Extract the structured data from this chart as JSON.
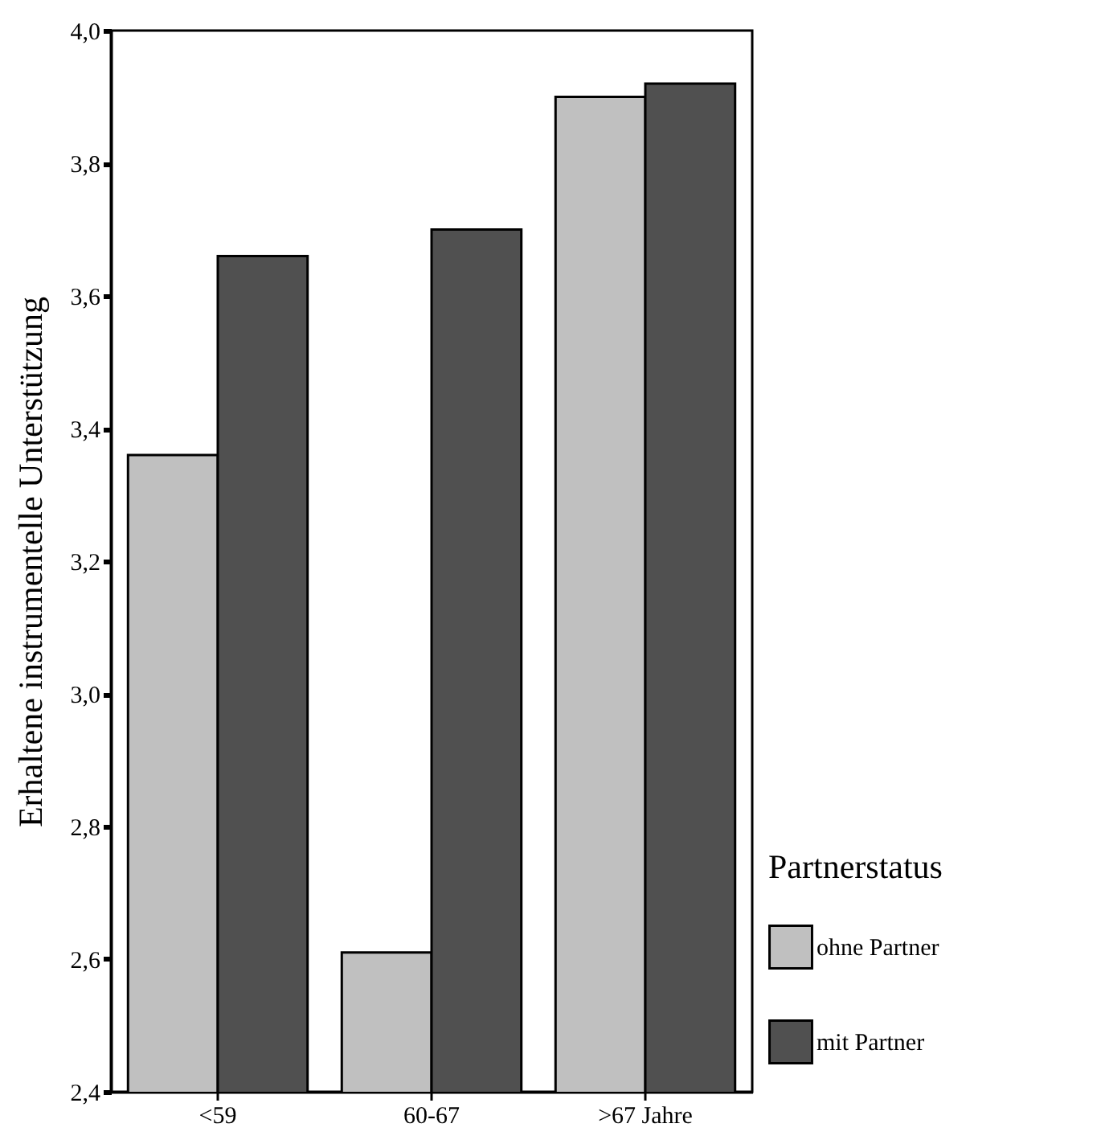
{
  "chart_data": {
    "type": "bar",
    "ylabel": "Erhaltene instrumentelle Unterstützung",
    "legend_title": "Partnerstatus",
    "legend": "right",
    "grid": false,
    "categories": [
      "<59",
      "60-67",
      ">67 Jahre"
    ],
    "series": [
      {
        "name": "ohne Partner",
        "color": "#c0c0c0",
        "values": [
          3.36,
          2.61,
          3.9
        ]
      },
      {
        "name": "mit Partner",
        "color": "#505050",
        "values": [
          3.66,
          3.7,
          3.92
        ]
      }
    ],
    "ylim": [
      2.4,
      4.0
    ],
    "yticks": [
      {
        "value": 2.4,
        "label": "2,4"
      },
      {
        "value": 2.6,
        "label": "2,6"
      },
      {
        "value": 2.8,
        "label": "2,8"
      },
      {
        "value": 3.0,
        "label": "3,0"
      },
      {
        "value": 3.2,
        "label": "3,2"
      },
      {
        "value": 3.4,
        "label": "3,4"
      },
      {
        "value": 3.6,
        "label": "3,6"
      },
      {
        "value": 3.8,
        "label": "3,8"
      },
      {
        "value": 4.0,
        "label": "4,0"
      }
    ]
  }
}
